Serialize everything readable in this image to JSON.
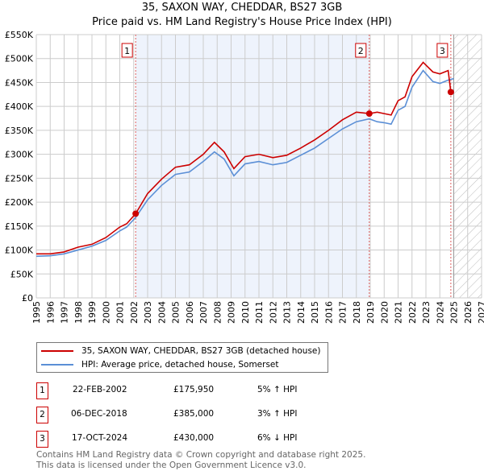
{
  "chart_data": {
    "type": "line",
    "title": "35, SAXON WAY, CHEDDAR, BS27 3GB",
    "subtitle": "Price paid vs. HM Land Registry's House Price Index (HPI)",
    "xlim": [
      1995,
      2027
    ],
    "ylim": [
      0,
      550000
    ],
    "x_ticks": [
      "1995",
      "1996",
      "1997",
      "1998",
      "1999",
      "2000",
      "2001",
      "2002",
      "2003",
      "2004",
      "2005",
      "2006",
      "2007",
      "2008",
      "2009",
      "2010",
      "2011",
      "2012",
      "2013",
      "2014",
      "2015",
      "2016",
      "2017",
      "2018",
      "2019",
      "2020",
      "2021",
      "2022",
      "2023",
      "2024",
      "2025",
      "2026",
      "2027"
    ],
    "y_ticks": [
      "£0",
      "£50K",
      "£100K",
      "£150K",
      "£200K",
      "£250K",
      "£300K",
      "£350K",
      "£400K",
      "£450K",
      "£500K",
      "£550K"
    ],
    "grid": true,
    "series": [
      {
        "name": "35, SAXON WAY, CHEDDAR, BS27 3GB (detached house)",
        "color": "#cc0000",
        "x": [
          1995,
          1996,
          1997,
          1998,
          1999,
          2000,
          2001,
          2001.5,
          2002.14,
          2003,
          2004,
          2005,
          2006,
          2007,
          2007.8,
          2008.5,
          2009.2,
          2010,
          2011,
          2012,
          2013,
          2014,
          2015,
          2016,
          2017,
          2018,
          2018.93,
          2019.5,
          2020,
          2020.5,
          2021,
          2021.5,
          2022,
          2022.8,
          2023.5,
          2024,
          2024.6,
          2024.79
        ],
        "y": [
          92000,
          92000,
          96000,
          106000,
          112000,
          126000,
          148000,
          155000,
          175950,
          218000,
          248000,
          273000,
          278000,
          300000,
          325000,
          305000,
          270000,
          295000,
          300000,
          293000,
          298000,
          313000,
          330000,
          350000,
          372000,
          388000,
          385000,
          388000,
          385000,
          382000,
          412000,
          420000,
          462000,
          492000,
          472000,
          468000,
          475000,
          430000
        ]
      },
      {
        "name": "HPI: Average price, detached house, Somerset",
        "color": "#5b8fd6",
        "x": [
          1995,
          1996,
          1997,
          1998,
          1999,
          2000,
          2001,
          2001.5,
          2002.14,
          2003,
          2004,
          2005,
          2006,
          2007,
          2007.8,
          2008.5,
          2009.2,
          2010,
          2011,
          2012,
          2013,
          2014,
          2015,
          2016,
          2017,
          2018,
          2018.93,
          2019.5,
          2020,
          2020.5,
          2021,
          2021.5,
          2022,
          2022.8,
          2023.5,
          2024,
          2024.6,
          2025
        ],
        "y": [
          87000,
          88000,
          92000,
          100000,
          108000,
          120000,
          140000,
          148000,
          168000,
          205000,
          235000,
          258000,
          263000,
          285000,
          305000,
          290000,
          255000,
          280000,
          285000,
          278000,
          283000,
          298000,
          313000,
          333000,
          353000,
          368000,
          374000,
          368000,
          366000,
          363000,
          392000,
          400000,
          440000,
          475000,
          452000,
          448000,
          455000,
          458000
        ]
      }
    ],
    "sales": [
      {
        "label": "1",
        "x": 2002.14,
        "y": 175950
      },
      {
        "label": "2",
        "x": 2018.93,
        "y": 385000
      },
      {
        "label": "3",
        "x": 2024.79,
        "y": 430000
      }
    ],
    "shaded_range": [
      2002.14,
      2018.93
    ],
    "hatched_from": 2025
  },
  "legend": {
    "items": [
      "35, SAXON WAY, CHEDDAR, BS27 3GB (detached house)",
      "HPI: Average price, detached house, Somerset"
    ]
  },
  "transactions": [
    {
      "num": "1",
      "date": "22-FEB-2002",
      "price": "£175,950",
      "hpi": "5% ↑ HPI"
    },
    {
      "num": "2",
      "date": "06-DEC-2018",
      "price": "£385,000",
      "hpi": "3% ↑ HPI"
    },
    {
      "num": "3",
      "date": "17-OCT-2024",
      "price": "£430,000",
      "hpi": "6% ↓ HPI"
    }
  ],
  "footer": {
    "line1": "Contains HM Land Registry data © Crown copyright and database right 2025.",
    "line2": "This data is licensed under the Open Government Licence v3.0."
  }
}
